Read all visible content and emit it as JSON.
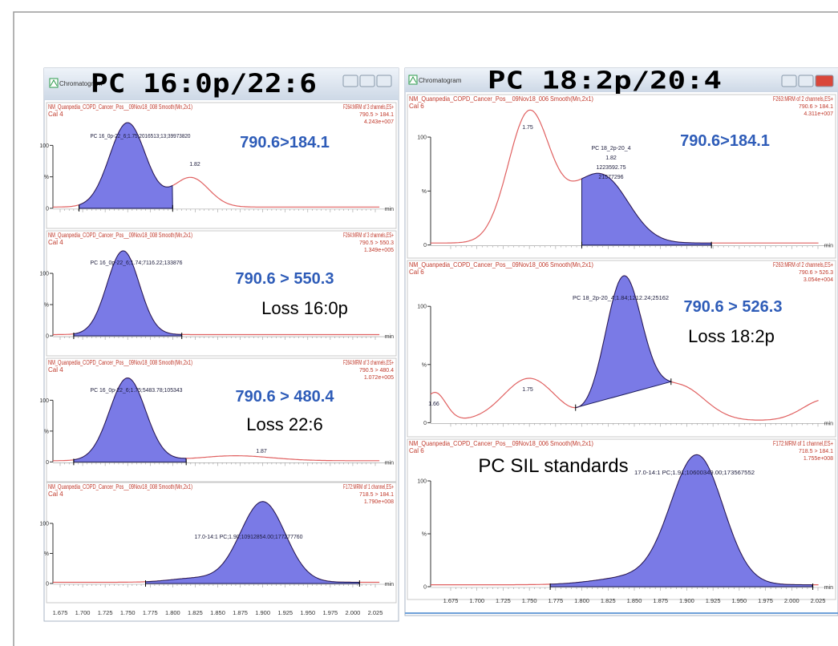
{
  "axis": {
    "y_labels": [
      "100",
      "%",
      "0"
    ],
    "unit": "min",
    "x_ticks": [
      "1.675",
      "1.700",
      "1.725",
      "1.750",
      "1.775",
      "1.800",
      "1.825",
      "1.850",
      "1.875",
      "1.900",
      "1.925",
      "1.950",
      "1.975",
      "2.000",
      "2.025"
    ]
  },
  "windows": [
    {
      "app": "Chromatogram",
      "title": "PC 16:0p/22:6",
      "panels": [
        {
          "file": "NM_Quanpedia_COPD_Cancer_Pos__09Nov18_008 Smooth(Mn,2x1)",
          "sample": "Cal 4",
          "function": "F264:MRM of 3 channels,ES+",
          "transition": "790.5 > 184.1",
          "intensity": "4.243e+007",
          "peak_labels": [
            "PC 16_0p-22_6;1.75;2016513;13;39973820",
            "1.82"
          ],
          "annotations": [
            "790.6>184.1"
          ]
        },
        {
          "file": "NM_Quanpedia_COPD_Cancer_Pos__09Nov18_008 Smooth(Mn,2x1)",
          "sample": "Cal 4",
          "function": "F264:MRM of 3 channels,ES+",
          "transition": "790.5 > 550.3",
          "intensity": "1.349e+005",
          "peak_labels": [
            "PC 16_0p-22_6;1.74;7116.22;133876"
          ],
          "annotations": [
            "790.6 > 550.3",
            "Loss 16:0p"
          ]
        },
        {
          "file": "NM_Quanpedia_COPD_Cancer_Pos__09Nov18_008 Smooth(Mn,2x1)",
          "sample": "Cal 4",
          "function": "F264:MRM of 3 channels,ES+",
          "transition": "790.5 > 480.4",
          "intensity": "1.072e+005",
          "peak_labels": [
            "PC 16_0p-22_6;1.75;5483.78;105343",
            "1.87"
          ],
          "annotations": [
            "790.6 > 480.4",
            "Loss 22:6"
          ]
        },
        {
          "file": "NM_Quanpedia_COPD_Cancer_Pos__09Nov18_008 Smooth(Mn,2x1)",
          "sample": "Cal 4",
          "function": "F172:MRM of 1 channel,ES+",
          "transition": "718.5 > 184.1",
          "intensity": "1.790e+008",
          "peak_labels": [
            "17.0-14:1 PC;1.90;10912854.00;177277760"
          ],
          "annotations": []
        }
      ]
    },
    {
      "app": "Chromatogram",
      "title": "PC 18:2p/20:4",
      "panels": [
        {
          "file": "NM_Quanpedia_COPD_Cancer_Pos__09Nov18_006 Smooth(Mn,2x1)",
          "sample": "Cal 6",
          "function": "F263:MRM of 2 channels,ES+",
          "transition": "790.6 > 184.1",
          "intensity": "4.311e+007",
          "peak_labels": [
            "1.75",
            "PC 18_2p-20_4",
            "1.82",
            "1223592.75",
            "21577296"
          ],
          "annotations": [
            "790.6>184.1"
          ]
        },
        {
          "file": "NM_Quanpedia_COPD_Cancer_Pos__09Nov18_006 Smooth(Mn,2x1)",
          "sample": "Cal 6",
          "function": "F263:MRM of 2 channels,ES+",
          "transition": "790.6 > 526.3",
          "intensity": "3.054e+004",
          "peak_labels": [
            "PC 18_2p-20_4;1.84;1212.24;25162",
            "1.75",
            "1.66"
          ],
          "annotations": [
            "790.6 > 526.3",
            "Loss 18:2p"
          ]
        },
        {
          "file": "NM_Quanpedia_COPD_Cancer_Pos__09Nov18_006 Smooth(Mn,2x1)",
          "sample": "Cal 6",
          "function": "F172:MRM of 1 channel,ES+",
          "transition": "718.5 > 184.1",
          "intensity": "1.755e+008",
          "peak_labels": [
            "17.0-14:1 PC;1.91;10600349.00;173567552"
          ],
          "annotations": [
            "PC SIL standards"
          ]
        }
      ]
    }
  ]
}
